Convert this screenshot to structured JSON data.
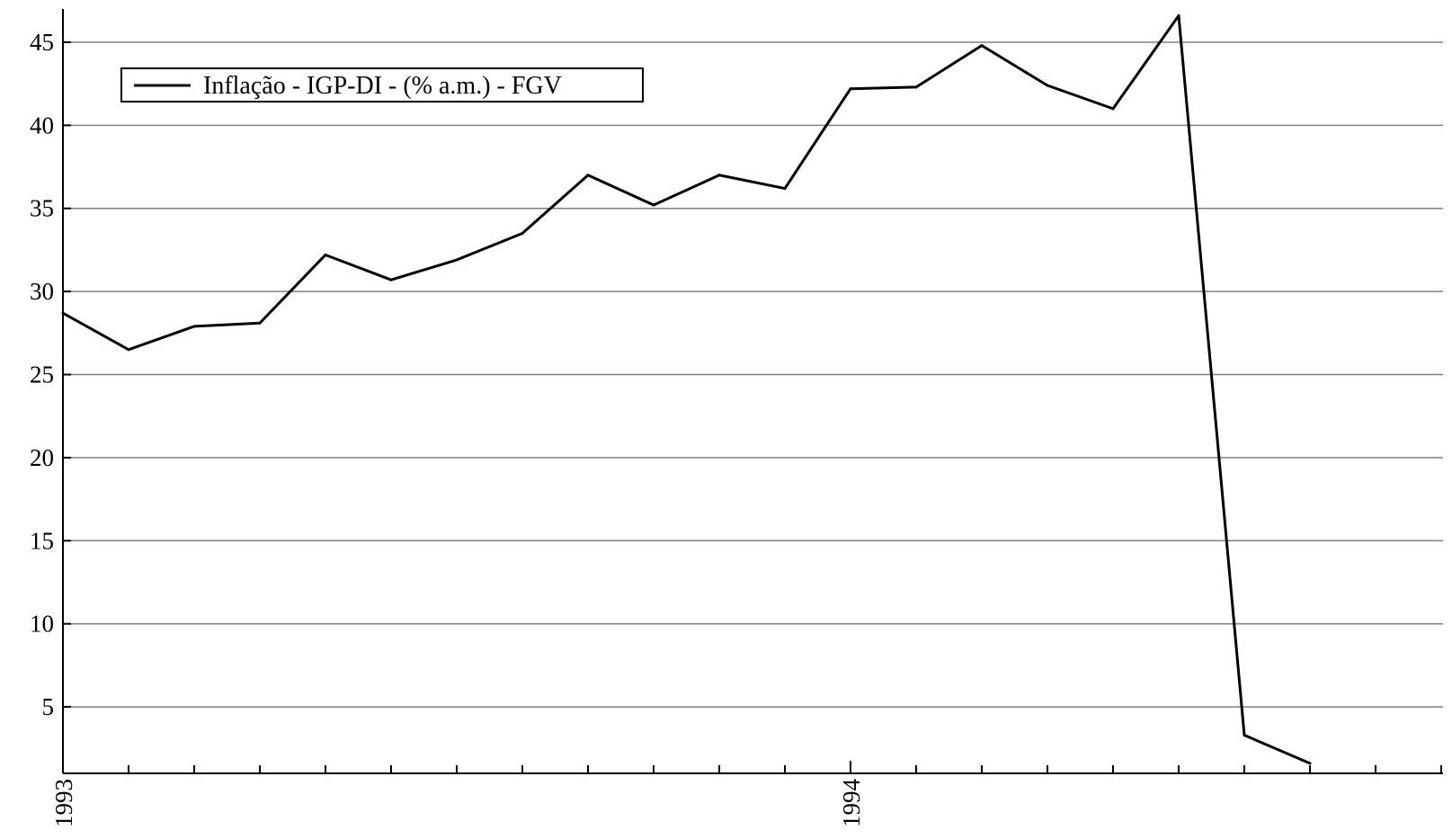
{
  "chart_data": {
    "type": "line",
    "title": "",
    "xlabel": "",
    "ylabel": "",
    "x_tick_labels": [
      "1993",
      "1994"
    ],
    "y_ticks": [
      5,
      10,
      15,
      20,
      25,
      30,
      35,
      40,
      45
    ],
    "ylim": [
      1,
      47
    ],
    "grid": "horizontal",
    "legend_position": "top-left",
    "series": [
      {
        "name": "Inflação - IGP-DI - (% a.m.) - FGV",
        "color": "#000000",
        "x": [
          "1993-01",
          "1993-02",
          "1993-03",
          "1993-04",
          "1993-05",
          "1993-06",
          "1993-07",
          "1993-08",
          "1993-09",
          "1993-10",
          "1993-11",
          "1993-12",
          "1994-01",
          "1994-02",
          "1994-03",
          "1994-04",
          "1994-05",
          "1994-06",
          "1994-07",
          "1994-08"
        ],
        "values": [
          28.7,
          26.5,
          27.9,
          28.1,
          32.2,
          30.7,
          31.9,
          33.5,
          37.0,
          35.2,
          37.0,
          36.2,
          42.2,
          42.3,
          44.8,
          42.4,
          41.0,
          46.6,
          3.3,
          1.6
        ]
      }
    ]
  }
}
